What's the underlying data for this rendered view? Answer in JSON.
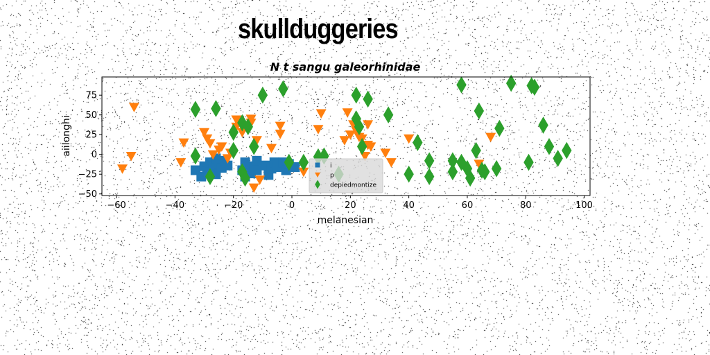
{
  "page": {
    "title": "skullduggeries"
  },
  "colors": {
    "series_i": "#1f77b4",
    "series_p": "#ff7f0e",
    "series_d": "#2ca02c",
    "legend_bg": "#d9d9d9"
  },
  "chart_data": {
    "type": "scatter",
    "title": "N t sangu galeorhinidae",
    "xlabel": "melanesian",
    "ylabel": "aiilonghi",
    "xlim": [
      -65,
      102
    ],
    "ylim": [
      -52,
      98
    ],
    "xticks": [
      -60,
      -40,
      -20,
      0,
      20,
      40,
      60,
      80,
      100
    ],
    "yticks": [
      -50,
      -25,
      0,
      25,
      50,
      75
    ],
    "grid": false,
    "legend_position": "lower-center",
    "series": [
      {
        "name": "i",
        "marker": "square",
        "color": "#1f77b4",
        "points": [
          [
            -33,
            -20
          ],
          [
            -31,
            -28
          ],
          [
            -30,
            -15
          ],
          [
            -29,
            -22
          ],
          [
            -28,
            -10
          ],
          [
            -27,
            -18
          ],
          [
            -26,
            -5
          ],
          [
            -26,
            -25
          ],
          [
            -25,
            -12
          ],
          [
            -24,
            -17
          ],
          [
            -23,
            -8
          ],
          [
            -22,
            -14
          ],
          [
            -17,
            -20
          ],
          [
            -16,
            -28
          ],
          [
            -16,
            -10
          ],
          [
            -15,
            -18
          ],
          [
            -14,
            -24
          ],
          [
            -13,
            -15
          ],
          [
            -12,
            -8
          ],
          [
            -12,
            -20
          ],
          [
            -9,
            -14
          ],
          [
            -8,
            -26
          ],
          [
            -7,
            -18
          ],
          [
            -6,
            -10
          ],
          [
            -5,
            -16
          ],
          [
            -3,
            -10
          ],
          [
            -2,
            -20
          ],
          [
            -1,
            -12
          ],
          [
            1,
            -16
          ]
        ]
      },
      {
        "name": "p",
        "marker": "triangle-down",
        "color": "#ff7f0e",
        "points": [
          [
            -58,
            -18
          ],
          [
            -55,
            -2
          ],
          [
            -54,
            60
          ],
          [
            -38,
            -10
          ],
          [
            -37,
            15
          ],
          [
            -30,
            28
          ],
          [
            -29,
            20
          ],
          [
            -28,
            14
          ],
          [
            -27,
            0
          ],
          [
            -25,
            6
          ],
          [
            -24,
            10
          ],
          [
            -22,
            -5
          ],
          [
            -21,
            2
          ],
          [
            -19,
            35
          ],
          [
            -19,
            44
          ],
          [
            -17,
            28
          ],
          [
            -14,
            45
          ],
          [
            -14,
            40
          ],
          [
            -13,
            -42
          ],
          [
            -12,
            18
          ],
          [
            -11,
            -32
          ],
          [
            -7,
            8
          ],
          [
            -4,
            36
          ],
          [
            -4,
            26
          ],
          [
            4,
            -22
          ],
          [
            9,
            32
          ],
          [
            10,
            52
          ],
          [
            18,
            18
          ],
          [
            19,
            53
          ],
          [
            20,
            25
          ],
          [
            21,
            38
          ],
          [
            22,
            30
          ],
          [
            23,
            22
          ],
          [
            24,
            20
          ],
          [
            25,
            -2
          ],
          [
            26,
            12
          ],
          [
            26,
            38
          ],
          [
            27,
            10
          ],
          [
            32,
            2
          ],
          [
            34,
            -10
          ],
          [
            40,
            20
          ],
          [
            64,
            -12
          ],
          [
            68,
            22
          ]
        ]
      },
      {
        "name": "depiedmontize",
        "marker": "diamond",
        "color": "#2ca02c",
        "points": [
          [
            -33,
            57
          ],
          [
            -33,
            -2
          ],
          [
            -28,
            -28
          ],
          [
            -26,
            58
          ],
          [
            -20,
            28
          ],
          [
            -20,
            5
          ],
          [
            -17,
            40
          ],
          [
            -17,
            -22
          ],
          [
            -16,
            -30
          ],
          [
            -15,
            35
          ],
          [
            -13,
            10
          ],
          [
            -10,
            75
          ],
          [
            -3,
            83
          ],
          [
            -1,
            -10
          ],
          [
            4,
            -10
          ],
          [
            9,
            -3
          ],
          [
            11,
            -2
          ],
          [
            16,
            -25
          ],
          [
            22,
            75
          ],
          [
            22,
            45
          ],
          [
            23,
            35
          ],
          [
            24,
            10
          ],
          [
            26,
            70
          ],
          [
            33,
            50
          ],
          [
            40,
            -25
          ],
          [
            43,
            15
          ],
          [
            47,
            -8
          ],
          [
            47,
            -28
          ],
          [
            55,
            -8
          ],
          [
            55,
            -22
          ],
          [
            58,
            88
          ],
          [
            58,
            -10
          ],
          [
            60,
            -18
          ],
          [
            61,
            -30
          ],
          [
            63,
            5
          ],
          [
            64,
            55
          ],
          [
            65,
            -20
          ],
          [
            66,
            -22
          ],
          [
            70,
            -18
          ],
          [
            71,
            33
          ],
          [
            75,
            90
          ],
          [
            81,
            -10
          ],
          [
            82,
            87
          ],
          [
            83,
            85
          ],
          [
            86,
            37
          ],
          [
            88,
            10
          ],
          [
            91,
            -5
          ],
          [
            94,
            5
          ]
        ]
      }
    ]
  }
}
